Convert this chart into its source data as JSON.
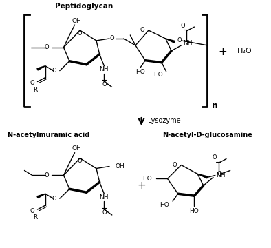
{
  "background": "#ffffff",
  "peptidoglycan_label": "Peptidoglycan",
  "lysozyme_label": "Lysozyme",
  "product1_label": "N-acetylmuramic acid",
  "product2_label": "N-acetyl-D-glucosamine",
  "plus_sign": "+",
  "water": "H₂O",
  "n_label": "n",
  "figsize": [
    3.94,
    3.6
  ],
  "dpi": 100
}
